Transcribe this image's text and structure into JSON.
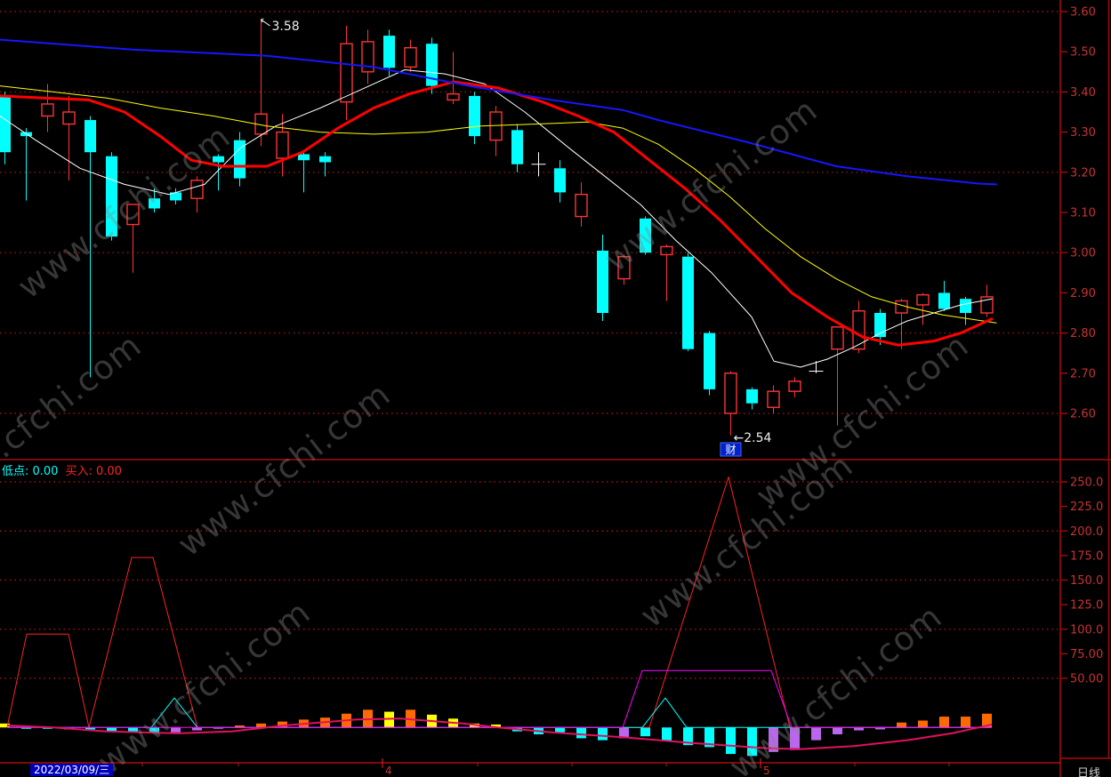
{
  "watermark": {
    "text": "www.cfchi.com"
  },
  "palette": {
    "up": "#ff3434",
    "down": "#00ffff",
    "cross": "#ffffff",
    "ma_white": "#ffffff",
    "ma_yellow": "#ffff00",
    "ma_red": "#ff0000",
    "ma_blue": "#1616ff",
    "grid": "#9e1212",
    "axis_line": "#aa0a0a",
    "axis_text": "#c83232",
    "bar_orange": "#ff6a00",
    "bar_yellow": "#ffff00",
    "bar_cyan": "#00ffff",
    "bar_purple": "#bb66ee",
    "line_red": "#ff2222",
    "line_cyan": "#00ffff",
    "line_magenta": "#ff00ff",
    "line_pink": "#e0115f",
    "annotation_text": "#eeeeee",
    "flag_bg": "#0022cc",
    "flag_border": "#4466ff",
    "date_bg": "#0000bb",
    "month_text": "#cc3333",
    "period_text": "#cccccc"
  },
  "bottom_panel": {
    "labels": [
      {
        "text": "低点: 0.00",
        "color_key": "line_cyan"
      },
      {
        "text": "买入: 0.00",
        "color_key": "line_red"
      }
    ]
  },
  "status_bar": {
    "date": "2022/03/09/三",
    "months": [
      {
        "label": "4",
        "x": 430
      },
      {
        "label": "5",
        "x": 855
      }
    ],
    "period": "日线"
  },
  "chart_data": [
    {
      "type": "candlestick",
      "panel": "main",
      "x_unit": "trading-day",
      "y_ticks": [
        {
          "v": 3.6,
          "label": "3.60",
          "grid": true
        },
        {
          "v": 3.5,
          "label": "3.50",
          "grid": false
        },
        {
          "v": 3.4,
          "label": "3.40",
          "grid": true
        },
        {
          "v": 3.3,
          "label": "3.30",
          "grid": false
        },
        {
          "v": 3.2,
          "label": "3.20",
          "grid": true
        },
        {
          "v": 3.1,
          "label": "3.10",
          "grid": false
        },
        {
          "v": 3.0,
          "label": "3.00",
          "grid": true
        },
        {
          "v": 2.9,
          "label": "2.90",
          "grid": false
        },
        {
          "v": 2.8,
          "label": "2.80",
          "grid": true
        },
        {
          "v": 2.7,
          "label": "2.70",
          "grid": false
        },
        {
          "v": 2.6,
          "label": "2.60",
          "grid": true
        }
      ],
      "candles": [
        [
          3.39,
          3.4,
          3.22,
          3.25
        ],
        [
          3.3,
          3.31,
          3.13,
          3.29
        ],
        [
          3.34,
          3.42,
          3.3,
          3.37
        ],
        [
          3.32,
          3.39,
          3.18,
          3.35
        ],
        [
          3.33,
          3.34,
          2.69,
          3.25
        ],
        [
          3.24,
          3.25,
          3.03,
          3.04
        ],
        [
          3.07,
          3.12,
          2.95,
          3.12
        ],
        [
          3.135,
          3.16,
          3.1,
          3.11
        ],
        [
          3.15,
          3.16,
          3.12,
          3.13
        ],
        [
          3.135,
          3.19,
          3.1,
          3.18
        ],
        [
          3.24,
          3.245,
          3.155,
          3.225
        ],
        [
          3.28,
          3.3,
          3.165,
          3.185
        ],
        [
          3.295,
          3.58,
          3.265,
          3.345
        ],
        [
          3.235,
          3.345,
          3.19,
          3.3
        ],
        [
          3.245,
          3.25,
          3.15,
          3.23
        ],
        [
          3.24,
          3.25,
          3.19,
          3.225
        ],
        [
          3.375,
          3.565,
          3.33,
          3.52
        ],
        [
          3.45,
          3.555,
          3.42,
          3.525
        ],
        [
          3.54,
          3.555,
          3.44,
          3.46
        ],
        [
          3.462,
          3.53,
          3.45,
          3.51
        ],
        [
          3.52,
          3.535,
          3.395,
          3.415
        ],
        [
          3.38,
          3.5,
          3.37,
          3.395
        ],
        [
          3.39,
          3.4,
          3.27,
          3.29
        ],
        [
          3.28,
          3.365,
          3.24,
          3.35
        ],
        [
          3.305,
          3.32,
          3.2,
          3.22
        ],
        [
          3.22,
          3.25,
          3.19,
          3.22
        ],
        [
          3.21,
          3.23,
          3.125,
          3.15
        ],
        [
          3.09,
          3.175,
          3.065,
          3.145
        ],
        [
          3.005,
          3.045,
          2.83,
          2.85
        ],
        [
          2.935,
          2.995,
          2.92,
          2.99
        ],
        [
          3.085,
          3.09,
          2.995,
          3.0
        ],
        [
          2.995,
          3.02,
          2.88,
          3.015
        ],
        [
          2.99,
          3.0,
          2.755,
          2.76
        ],
        [
          2.8,
          2.805,
          2.645,
          2.66
        ],
        [
          2.6,
          2.705,
          2.545,
          2.7
        ],
        [
          2.66,
          2.665,
          2.61,
          2.625
        ],
        [
          2.615,
          2.67,
          2.6,
          2.655
        ],
        [
          2.655,
          2.69,
          2.64,
          2.68
        ],
        [
          2.725,
          2.73,
          2.7,
          2.705
        ],
        [
          2.76,
          2.815,
          2.57,
          2.815
        ],
        [
          2.76,
          2.88,
          2.75,
          2.855
        ],
        [
          2.85,
          2.86,
          2.77,
          2.79
        ],
        [
          2.85,
          2.885,
          2.76,
          2.88
        ],
        [
          2.87,
          2.9,
          2.82,
          2.895
        ],
        [
          2.9,
          2.93,
          2.855,
          2.86
        ],
        [
          2.885,
          2.89,
          2.82,
          2.85
        ],
        [
          2.85,
          2.92,
          2.84,
          2.89
        ]
      ],
      "white_cross_candles": [
        25,
        38
      ],
      "ma_lines": [
        {
          "name": "ma-white",
          "color_key": "ma_white",
          "width": 1,
          "points": [
            [
              0,
              3.34
            ],
            [
              40,
              3.28
            ],
            [
              90,
              3.21
            ],
            [
              140,
              3.17
            ],
            [
              190,
              3.145
            ],
            [
              230,
              3.17
            ],
            [
              270,
              3.26
            ],
            [
              310,
              3.315
            ],
            [
              360,
              3.36
            ],
            [
              410,
              3.41
            ],
            [
              455,
              3.455
            ],
            [
              500,
              3.445
            ],
            [
              545,
              3.42
            ],
            [
              590,
              3.35
            ],
            [
              640,
              3.26
            ],
            [
              680,
              3.19
            ],
            [
              720,
              3.12
            ],
            [
              760,
              3.03
            ],
            [
              800,
              2.95
            ],
            [
              845,
              2.84
            ],
            [
              870,
              2.73
            ],
            [
              900,
              2.715
            ],
            [
              930,
              2.735
            ],
            [
              960,
              2.765
            ],
            [
              990,
              2.8
            ],
            [
              1020,
              2.83
            ],
            [
              1050,
              2.85
            ],
            [
              1080,
              2.87
            ],
            [
              1115,
              2.885
            ]
          ]
        },
        {
          "name": "ma-yellow",
          "color_key": "ma_yellow",
          "width": 1,
          "points": [
            [
              0,
              3.415
            ],
            [
              60,
              3.4
            ],
            [
              120,
              3.385
            ],
            [
              180,
              3.36
            ],
            [
              240,
              3.34
            ],
            [
              300,
              3.315
            ],
            [
              360,
              3.3
            ],
            [
              420,
              3.295
            ],
            [
              480,
              3.3
            ],
            [
              540,
              3.315
            ],
            [
              600,
              3.32
            ],
            [
              660,
              3.325
            ],
            [
              700,
              3.31
            ],
            [
              740,
              3.27
            ],
            [
              780,
              3.21
            ],
            [
              820,
              3.14
            ],
            [
              860,
              3.06
            ],
            [
              900,
              2.99
            ],
            [
              940,
              2.935
            ],
            [
              980,
              2.89
            ],
            [
              1020,
              2.865
            ],
            [
              1060,
              2.845
            ],
            [
              1090,
              2.835
            ],
            [
              1120,
              2.825
            ]
          ]
        },
        {
          "name": "ma-red",
          "color_key": "ma_red",
          "width": 3,
          "points": [
            [
              0,
              3.39
            ],
            [
              50,
              3.385
            ],
            [
              100,
              3.38
            ],
            [
              140,
              3.35
            ],
            [
              180,
              3.29
            ],
            [
              215,
              3.23
            ],
            [
              250,
              3.215
            ],
            [
              300,
              3.215
            ],
            [
              340,
              3.25
            ],
            [
              380,
              3.31
            ],
            [
              420,
              3.36
            ],
            [
              460,
              3.395
            ],
            [
              510,
              3.425
            ],
            [
              560,
              3.41
            ],
            [
              610,
              3.375
            ],
            [
              650,
              3.34
            ],
            [
              690,
              3.3
            ],
            [
              730,
              3.23
            ],
            [
              770,
              3.16
            ],
            [
              810,
              3.08
            ],
            [
              850,
              2.99
            ],
            [
              890,
              2.9
            ],
            [
              930,
              2.84
            ],
            [
              970,
              2.79
            ],
            [
              1010,
              2.77
            ],
            [
              1050,
              2.78
            ],
            [
              1080,
              2.8
            ],
            [
              1115,
              2.835
            ]
          ]
        },
        {
          "name": "ma-blue",
          "color_key": "ma_blue",
          "width": 2,
          "points": [
            [
              0,
              3.53
            ],
            [
              150,
              3.505
            ],
            [
              300,
              3.49
            ],
            [
              420,
              3.462
            ],
            [
              530,
              3.414
            ],
            [
              620,
              3.38
            ],
            [
              700,
              3.355
            ],
            [
              740,
              3.33
            ],
            [
              840,
              3.275
            ],
            [
              940,
              3.215
            ],
            [
              1020,
              3.19
            ],
            [
              1100,
              3.172
            ],
            [
              1120,
              3.17
            ]
          ]
        }
      ],
      "annotations": [
        {
          "candle": 12,
          "at": "high",
          "text": "3.58"
        },
        {
          "candle": 34,
          "at": "low",
          "text": "←2.54"
        },
        {
          "candle": 34,
          "at": "flag",
          "text": "财"
        }
      ]
    },
    {
      "type": "bar+line",
      "panel": "indicator",
      "y_ticks": [
        {
          "v": 250,
          "label": "250.0",
          "grid": true
        },
        {
          "v": 225,
          "label": "225.0",
          "grid": false
        },
        {
          "v": 200,
          "label": "200.0",
          "grid": true
        },
        {
          "v": 175,
          "label": "175.0",
          "grid": false
        },
        {
          "v": 150,
          "label": "150.0",
          "grid": true
        },
        {
          "v": 125,
          "label": "125.0",
          "grid": false
        },
        {
          "v": 100,
          "label": "100.0",
          "grid": true
        },
        {
          "v": 75,
          "label": "75.00",
          "grid": false
        },
        {
          "v": 50,
          "label": "50.00",
          "grid": true
        }
      ],
      "bars": {
        "values": [
          4,
          -1,
          -1,
          -2,
          -2,
          -4,
          -5,
          -6,
          -5,
          -3,
          -1,
          2,
          4,
          6,
          8,
          10,
          14,
          18,
          16,
          18,
          13,
          9,
          4,
          3,
          -4,
          -7,
          -5,
          -11,
          -13,
          -11,
          -9,
          -14,
          -18,
          -20,
          -27,
          -29,
          -25,
          -23,
          -13,
          -7,
          -3,
          -2,
          5,
          7,
          11,
          11,
          14
        ],
        "color_keys": [
          "bar_yellow",
          "bar_cyan",
          "bar_cyan",
          "bar_cyan",
          "bar_cyan",
          "bar_cyan",
          "bar_cyan",
          "bar_cyan",
          "bar_purple",
          "bar_purple",
          "bar_purple",
          "bar_orange",
          "bar_orange",
          "bar_orange",
          "bar_orange",
          "bar_orange",
          "bar_orange",
          "bar_orange",
          "bar_yellow",
          "bar_orange",
          "bar_yellow",
          "bar_yellow",
          "bar_yellow",
          "bar_yellow",
          "bar_cyan",
          "bar_cyan",
          "bar_cyan",
          "bar_cyan",
          "bar_cyan",
          "bar_purple",
          "bar_cyan",
          "bar_cyan",
          "bar_cyan",
          "bar_cyan",
          "bar_cyan",
          "bar_cyan",
          "bar_purple",
          "bar_purple",
          "bar_purple",
          "bar_purple",
          "bar_purple",
          "bar_purple",
          "bar_orange",
          "bar_orange",
          "bar_orange",
          "bar_orange",
          "bar_orange"
        ]
      },
      "lines": [
        {
          "name": "buy-line",
          "color_key": "line_red",
          "width": 1,
          "points": [
            [
              8,
              0
            ],
            [
              30,
              95
            ],
            [
              77,
              95
            ],
            [
              100,
              0
            ],
            [
              148,
              173
            ],
            [
              172,
              173
            ],
            [
              222,
              0
            ],
            [
              730,
              0
            ],
            [
              819,
              255
            ],
            [
              888,
              0
            ],
            [
              1115,
              0
            ]
          ]
        },
        {
          "name": "low-line",
          "color_key": "line_cyan",
          "width": 1,
          "points": [
            [
              8,
              0
            ],
            [
              170,
              0
            ],
            [
              196,
              30
            ],
            [
              222,
              0
            ],
            [
              722,
              0
            ],
            [
              748,
              30
            ],
            [
              772,
              0
            ],
            [
              1115,
              0
            ]
          ]
        },
        {
          "name": "signal-line",
          "color_key": "line_magenta",
          "width": 1,
          "points": [
            [
              8,
              0
            ],
            [
              700,
              0
            ],
            [
              722,
              58
            ],
            [
              867,
              58
            ],
            [
              890,
              0
            ],
            [
              1115,
              0
            ]
          ]
        },
        {
          "name": "smooth-line",
          "color_key": "line_pink",
          "width": 2,
          "points": [
            [
              8,
              2
            ],
            [
              60,
              0
            ],
            [
              120,
              -4
            ],
            [
              200,
              -6
            ],
            [
              260,
              -4
            ],
            [
              320,
              2
            ],
            [
              400,
              8
            ],
            [
              450,
              9
            ],
            [
              520,
              4
            ],
            [
              560,
              0
            ],
            [
              620,
              -5
            ],
            [
              700,
              -10
            ],
            [
              780,
              -16
            ],
            [
              860,
              -21
            ],
            [
              900,
              -22
            ],
            [
              960,
              -19
            ],
            [
              1020,
              -13
            ],
            [
              1070,
              -6
            ],
            [
              1100,
              0
            ],
            [
              1115,
              3
            ]
          ]
        }
      ]
    }
  ]
}
